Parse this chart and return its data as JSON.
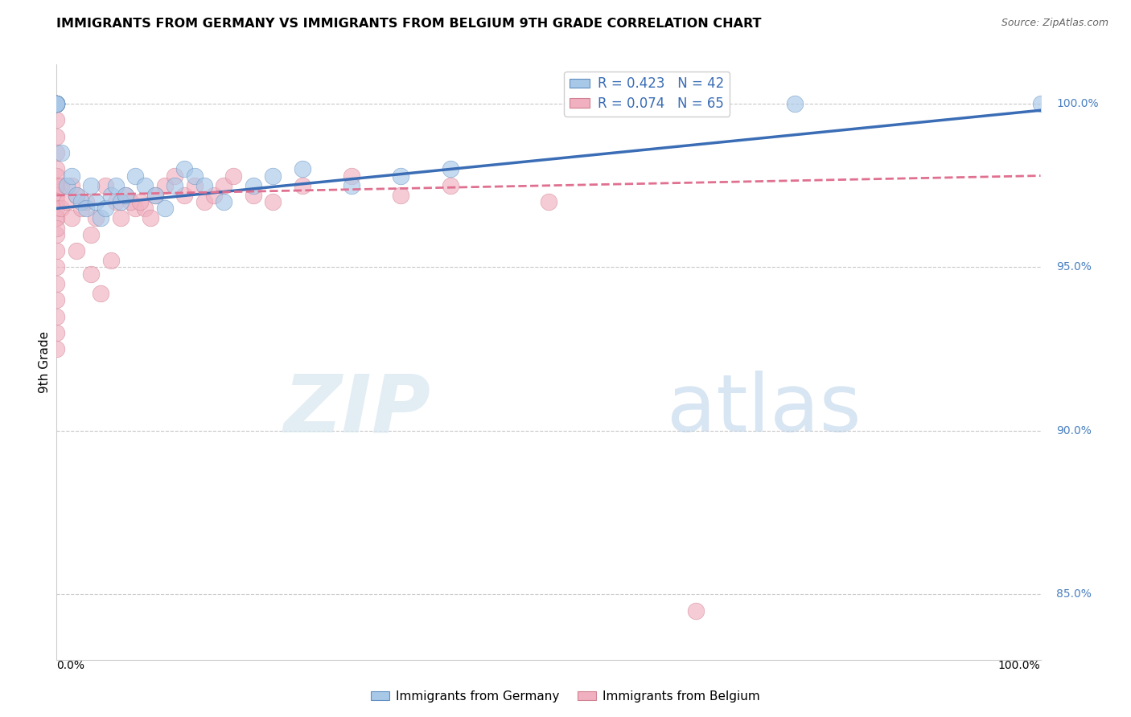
{
  "title": "IMMIGRANTS FROM GERMANY VS IMMIGRANTS FROM BELGIUM 9TH GRADE CORRELATION CHART",
  "source": "Source: ZipAtlas.com",
  "ylabel": "9th Grade",
  "legend_blue_r": "R = 0.423",
  "legend_blue_n": "N = 42",
  "legend_pink_r": "R = 0.074",
  "legend_pink_n": "N = 65",
  "legend_blue_label": "Immigrants from Germany",
  "legend_pink_label": "Immigrants from Belgium",
  "blue_color": "#a8c8e8",
  "pink_color": "#f0b0c0",
  "trend_blue_color": "#3a6db5",
  "trend_pink_color": "#e07090",
  "xlim": [
    0,
    100
  ],
  "ylim": [
    83.0,
    101.2
  ],
  "yticks": [
    85.0,
    90.0,
    95.0,
    100.0
  ],
  "grid_color": "#c8c8c8",
  "blue_x": [
    0.0,
    0.0,
    0.0,
    0.0,
    0.0,
    0.0,
    0.0,
    0.0,
    0.0,
    0.0,
    0.0,
    0.5,
    1.0,
    1.5,
    2.0,
    2.5,
    3.0,
    3.5,
    4.0,
    4.5,
    5.0,
    5.5,
    6.0,
    6.5,
    7.0,
    8.0,
    9.0,
    10.0,
    11.0,
    12.0,
    13.0,
    14.0,
    15.0,
    17.0,
    20.0,
    22.0,
    25.0,
    30.0,
    35.0,
    40.0,
    75.0,
    100.0
  ],
  "blue_y": [
    100.0,
    100.0,
    100.0,
    100.0,
    100.0,
    100.0,
    100.0,
    100.0,
    100.0,
    100.0,
    100.0,
    98.5,
    97.5,
    97.8,
    97.2,
    97.0,
    96.8,
    97.5,
    97.0,
    96.5,
    96.8,
    97.2,
    97.5,
    97.0,
    97.2,
    97.8,
    97.5,
    97.2,
    96.8,
    97.5,
    98.0,
    97.8,
    97.5,
    97.0,
    97.5,
    97.8,
    98.0,
    97.5,
    97.8,
    98.0,
    100.0,
    100.0
  ],
  "pink_x": [
    0.0,
    0.0,
    0.0,
    0.0,
    0.0,
    0.0,
    0.0,
    0.0,
    0.0,
    0.0,
    0.0,
    0.0,
    0.0,
    0.0,
    0.0,
    0.0,
    0.0,
    0.0,
    0.0,
    0.0,
    0.0,
    0.0,
    0.0,
    0.0,
    0.0,
    0.5,
    0.5,
    1.0,
    1.5,
    2.0,
    2.5,
    3.0,
    4.0,
    5.0,
    6.0,
    2.0,
    3.5,
    7.0,
    8.0,
    5.5,
    4.5,
    6.5,
    7.5,
    9.0,
    10.0,
    1.5,
    3.5,
    8.5,
    9.5,
    11.0,
    12.0,
    13.0,
    14.0,
    15.0,
    16.0,
    17.0,
    18.0,
    20.0,
    22.0,
    25.0,
    30.0,
    35.0,
    40.0,
    50.0,
    65.0
  ],
  "pink_y": [
    100.0,
    100.0,
    100.0,
    100.0,
    99.5,
    99.0,
    98.5,
    98.0,
    97.5,
    97.0,
    96.5,
    96.0,
    95.5,
    95.0,
    94.5,
    94.0,
    93.5,
    93.0,
    92.5,
    97.8,
    97.5,
    97.2,
    96.8,
    96.5,
    96.2,
    97.5,
    96.8,
    97.0,
    96.5,
    97.2,
    96.8,
    97.0,
    96.5,
    97.5,
    97.0,
    95.5,
    94.8,
    97.2,
    96.8,
    95.2,
    94.2,
    96.5,
    97.0,
    96.8,
    97.2,
    97.5,
    96.0,
    97.0,
    96.5,
    97.5,
    97.8,
    97.2,
    97.5,
    97.0,
    97.2,
    97.5,
    97.8,
    97.2,
    97.0,
    97.5,
    97.8,
    97.2,
    97.5,
    97.0,
    84.5
  ],
  "trend_blue_start_x": 0,
  "trend_blue_start_y": 96.8,
  "trend_blue_end_x": 100,
  "trend_blue_end_y": 99.8,
  "trend_pink_start_x": 0,
  "trend_pink_start_y": 97.2,
  "trend_pink_end_x": 100,
  "trend_pink_end_y": 97.8
}
